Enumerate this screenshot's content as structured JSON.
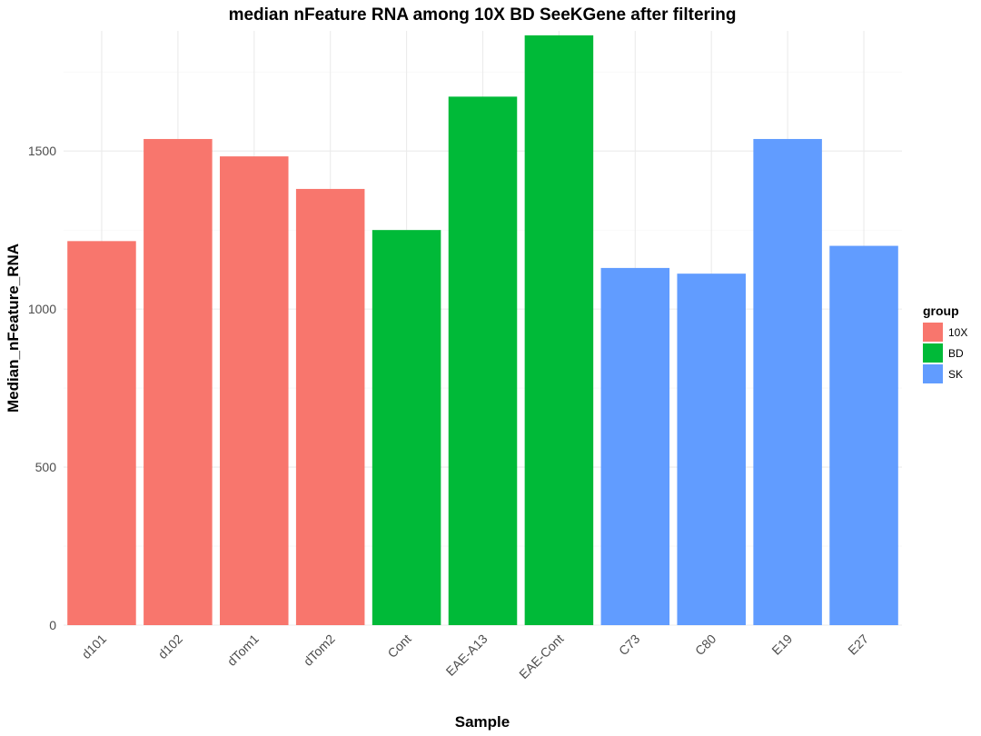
{
  "chart_data": {
    "type": "bar",
    "title": "median nFeature RNA among 10X BD SeeKGene after filtering",
    "xlabel": "Sample",
    "ylabel": "Median_nFeature_RNA",
    "categories": [
      "d101",
      "d102",
      "dTom1",
      "dTom2",
      "Cont",
      "EAE-A13",
      "EAE-Cont",
      "C73",
      "C80",
      "E19",
      "E27"
    ],
    "values": [
      1215,
      1538,
      1483,
      1380,
      1250,
      1672,
      1866,
      1130,
      1112,
      1538,
      1200
    ],
    "groups": [
      "10X",
      "10X",
      "10X",
      "10X",
      "BD",
      "BD",
      "BD",
      "SK",
      "SK",
      "SK",
      "SK"
    ],
    "ylim": [
      0,
      1880
    ],
    "yticks": [
      0,
      500,
      1000,
      1500
    ],
    "grid": true,
    "legend": {
      "title": "group",
      "placement": "right",
      "entries": [
        {
          "name": "10X",
          "color": "#F8766D"
        },
        {
          "name": "BD",
          "color": "#00BA38"
        },
        {
          "name": "SK",
          "color": "#619CFF"
        }
      ]
    }
  }
}
